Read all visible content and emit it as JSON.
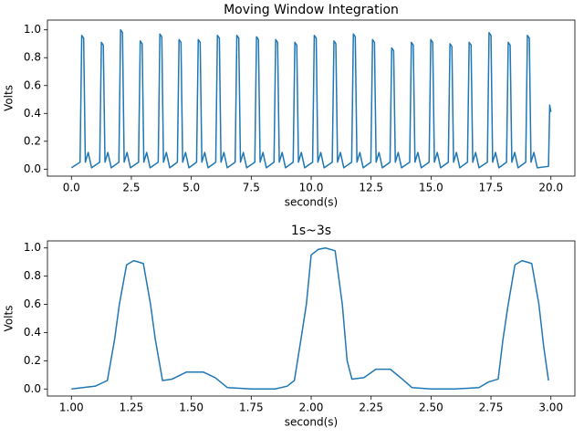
{
  "chart_data": [
    {
      "type": "line",
      "title": "Moving Window Integration",
      "xlabel": "second(s)",
      "ylabel": "Volts",
      "xlim": [
        -1.0,
        21.0
      ],
      "ylim": [
        -0.05,
        1.07
      ],
      "xticks": [
        {
          "value": 0,
          "label": "0.0"
        },
        2.5,
        {
          "value": 5,
          "label": "5.0"
        },
        7.5,
        {
          "value": 10,
          "label": "10.0"
        },
        12.5,
        {
          "value": 15,
          "label": "15.0"
        },
        17.5,
        {
          "value": 20,
          "label": "20.0"
        }
      ],
      "yticks": [
        {
          "value": 0,
          "label": "0.0"
        },
        0.2,
        0.4,
        0.6,
        0.8,
        {
          "value": 1,
          "label": "1.0"
        }
      ],
      "series": [
        {
          "color": "#1f77b4",
          "x": [
            0,
            0.36,
            0.43,
            0.51,
            0.58,
            0.7,
            0.84,
            1.18,
            1.25,
            1.33,
            1.4,
            1.52,
            1.66,
            1.98,
            2.05,
            2.13,
            2.2,
            2.32,
            2.46,
            2.8,
            2.87,
            2.95,
            3.02,
            3.14,
            3.28,
            3.62,
            3.69,
            3.77,
            3.84,
            3.96,
            4.1,
            4.42,
            4.49,
            4.57,
            4.64,
            4.76,
            4.9,
            5.22,
            5.29,
            5.37,
            5.44,
            5.56,
            5.7,
            6.02,
            6.09,
            6.17,
            6.24,
            6.36,
            6.5,
            6.83,
            6.9,
            6.98,
            7.05,
            7.17,
            7.31,
            7.65,
            7.72,
            7.8,
            7.87,
            7.99,
            8.13,
            8.45,
            8.52,
            8.6,
            8.67,
            8.79,
            8.93,
            9.25,
            9.32,
            9.4,
            9.47,
            9.59,
            9.73,
            10.06,
            10.13,
            10.21,
            10.28,
            10.4,
            10.54,
            10.88,
            10.95,
            11.03,
            11.1,
            11.22,
            11.36,
            11.69,
            11.76,
            11.84,
            11.91,
            12.03,
            12.17,
            12.49,
            12.56,
            12.64,
            12.71,
            12.83,
            12.97,
            13.29,
            13.36,
            13.44,
            13.51,
            13.63,
            13.77,
            14.11,
            14.18,
            14.26,
            14.33,
            14.45,
            14.59,
            14.92,
            14.99,
            15.07,
            15.14,
            15.26,
            15.4,
            15.72,
            15.79,
            15.87,
            15.94,
            16.06,
            16.2,
            16.52,
            16.59,
            16.67,
            16.74,
            16.86,
            17.0,
            17.35,
            17.42,
            17.5,
            17.57,
            17.69,
            17.83,
            18.15,
            18.22,
            18.3,
            18.37,
            18.49,
            18.63,
            18.95,
            19.02,
            19.1,
            19.17,
            19.29,
            19.43,
            19.9,
            19.95,
            20.0
          ],
          "values": [
            0.01,
            0.05,
            0.96,
            0.94,
            0.05,
            0.12,
            0.01,
            0.05,
            0.91,
            0.89,
            0.05,
            0.12,
            0.01,
            0.05,
            1.0,
            0.98,
            0.05,
            0.12,
            0.01,
            0.05,
            0.92,
            0.9,
            0.05,
            0.12,
            0.01,
            0.05,
            0.97,
            0.95,
            0.05,
            0.12,
            0.01,
            0.05,
            0.93,
            0.91,
            0.05,
            0.12,
            0.01,
            0.05,
            0.93,
            0.91,
            0.05,
            0.12,
            0.01,
            0.05,
            0.96,
            0.94,
            0.05,
            0.12,
            0.01,
            0.05,
            0.96,
            0.94,
            0.05,
            0.12,
            0.01,
            0.05,
            0.95,
            0.93,
            0.05,
            0.12,
            0.01,
            0.05,
            0.93,
            0.91,
            0.05,
            0.12,
            0.01,
            0.05,
            0.91,
            0.89,
            0.05,
            0.12,
            0.01,
            0.05,
            0.96,
            0.94,
            0.05,
            0.12,
            0.01,
            0.05,
            0.92,
            0.9,
            0.05,
            0.12,
            0.01,
            0.05,
            0.97,
            0.95,
            0.05,
            0.12,
            0.01,
            0.05,
            0.93,
            0.91,
            0.05,
            0.12,
            0.01,
            0.05,
            0.87,
            0.85,
            0.05,
            0.12,
            0.01,
            0.05,
            0.91,
            0.89,
            0.05,
            0.12,
            0.01,
            0.05,
            0.93,
            0.91,
            0.05,
            0.12,
            0.01,
            0.05,
            0.9,
            0.88,
            0.05,
            0.12,
            0.01,
            0.05,
            0.91,
            0.89,
            0.05,
            0.12,
            0.01,
            0.05,
            0.98,
            0.96,
            0.05,
            0.12,
            0.01,
            0.05,
            0.91,
            0.89,
            0.05,
            0.12,
            0.01,
            0.05,
            0.96,
            0.94,
            0.05,
            0.12,
            0.01,
            0.02,
            0.46,
            0.41
          ]
        }
      ]
    },
    {
      "type": "line",
      "title": "1s~3s",
      "xlabel": "second(s)",
      "ylabel": "Volts",
      "xlim": [
        0.9,
        3.1
      ],
      "ylim": [
        -0.05,
        1.05
      ],
      "xticks": [
        {
          "value": 1,
          "label": "1.00"
        },
        {
          "value": 1.25,
          "label": "1.25"
        },
        {
          "value": 1.5,
          "label": "1.50"
        },
        {
          "value": 1.75,
          "label": "1.75"
        },
        {
          "value": 2,
          "label": "2.00"
        },
        {
          "value": 2.25,
          "label": "2.25"
        },
        {
          "value": 2.5,
          "label": "2.50"
        },
        {
          "value": 2.75,
          "label": "2.75"
        },
        {
          "value": 3,
          "label": "3.00"
        }
      ],
      "yticks": [
        {
          "value": 0,
          "label": "0.0"
        },
        0.2,
        0.4,
        0.6,
        0.8,
        {
          "value": 1,
          "label": "1.0"
        }
      ],
      "series": [
        {
          "color": "#1f77b4",
          "x": [
            1.0,
            1.1,
            1.15,
            1.18,
            1.2,
            1.23,
            1.26,
            1.3,
            1.33,
            1.35,
            1.38,
            1.42,
            1.48,
            1.55,
            1.6,
            1.65,
            1.75,
            1.85,
            1.9,
            1.93,
            1.96,
            1.98,
            2.0,
            2.03,
            2.06,
            2.1,
            2.13,
            2.15,
            2.17,
            2.22,
            2.27,
            2.33,
            2.38,
            2.42,
            2.5,
            2.6,
            2.7,
            2.74,
            2.78,
            2.8,
            2.82,
            2.85,
            2.88,
            2.92,
            2.95,
            2.97,
            2.99
          ],
          "values": [
            0.0,
            0.02,
            0.06,
            0.35,
            0.6,
            0.88,
            0.91,
            0.89,
            0.6,
            0.35,
            0.06,
            0.07,
            0.12,
            0.12,
            0.08,
            0.01,
            0.0,
            0.0,
            0.02,
            0.06,
            0.38,
            0.6,
            0.95,
            0.99,
            1.0,
            0.98,
            0.6,
            0.2,
            0.07,
            0.08,
            0.14,
            0.14,
            0.07,
            0.01,
            0.0,
            0.0,
            0.01,
            0.05,
            0.07,
            0.35,
            0.58,
            0.88,
            0.91,
            0.89,
            0.6,
            0.3,
            0.06
          ]
        }
      ]
    }
  ]
}
